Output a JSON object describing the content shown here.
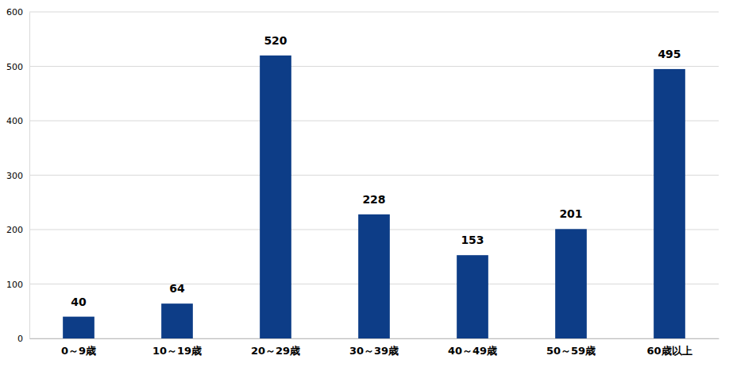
{
  "chart_data": {
    "type": "bar",
    "categories": [
      "0～9歳",
      "10～19歳",
      "20～29歳",
      "30～39歳",
      "40～49歳",
      "50～59歳",
      "60歳以上"
    ],
    "values": [
      40,
      64,
      520,
      228,
      153,
      201,
      495
    ],
    "color": "#0d3d87",
    "ylim": [
      0,
      600
    ],
    "yticks": [
      0,
      100,
      200,
      300,
      400,
      500,
      600
    ],
    "grid": true,
    "data_labels": true
  }
}
